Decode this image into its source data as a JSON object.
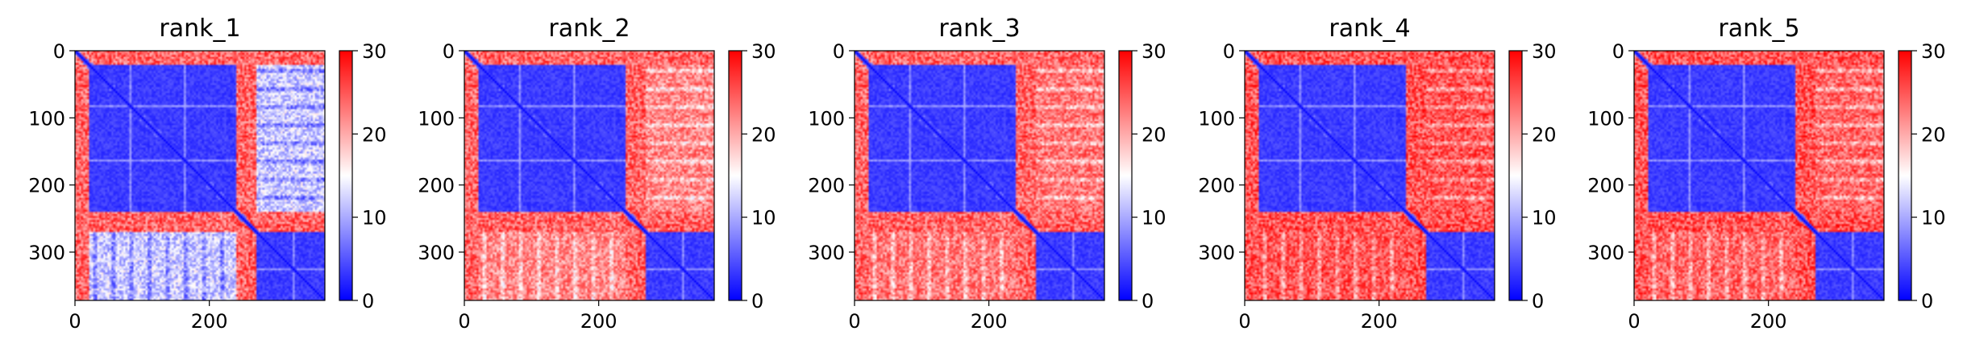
{
  "chart_data": [
    {
      "type": "heatmap",
      "title": "rank_1",
      "n": 372,
      "blocks": [
        [
          20,
          240
        ],
        [
          270,
          372
        ]
      ],
      "cross_level": 24,
      "offdiag_level": 12,
      "xticks": [
        0,
        200
      ],
      "yticks": [
        0,
        100,
        200,
        300
      ],
      "colorbar": {
        "range": [
          0,
          30
        ],
        "ticks": [
          0,
          10,
          20,
          30
        ],
        "colors": [
          "#0000ff",
          "#ffffff",
          "#ff0000"
        ]
      }
    },
    {
      "type": "heatmap",
      "title": "rank_2",
      "n": 372,
      "blocks": [
        [
          20,
          240
        ],
        [
          270,
          372
        ]
      ],
      "cross_level": 24,
      "offdiag_level": 22,
      "xticks": [
        0,
        200
      ],
      "yticks": [
        0,
        100,
        200,
        300
      ],
      "colorbar": {
        "range": [
          0,
          30
        ],
        "ticks": [
          0,
          10,
          20,
          30
        ],
        "colors": [
          "#0000ff",
          "#ffffff",
          "#ff0000"
        ]
      }
    },
    {
      "type": "heatmap",
      "title": "rank_3",
      "n": 372,
      "blocks": [
        [
          20,
          240
        ],
        [
          270,
          372
        ]
      ],
      "cross_level": 24,
      "offdiag_level": 23,
      "xticks": [
        0,
        200
      ],
      "yticks": [
        0,
        100,
        200,
        300
      ],
      "colorbar": {
        "range": [
          0,
          30
        ],
        "ticks": [
          0,
          10,
          20,
          30
        ],
        "colors": [
          "#0000ff",
          "#ffffff",
          "#ff0000"
        ]
      }
    },
    {
      "type": "heatmap",
      "title": "rank_4",
      "n": 372,
      "blocks": [
        [
          20,
          240
        ],
        [
          270,
          372
        ]
      ],
      "cross_level": 25,
      "offdiag_level": 25,
      "xticks": [
        0,
        200
      ],
      "yticks": [
        0,
        100,
        200,
        300
      ],
      "colorbar": {
        "range": [
          0,
          30
        ],
        "ticks": [
          0,
          10,
          20,
          30
        ],
        "colors": [
          "#0000ff",
          "#ffffff",
          "#ff0000"
        ]
      }
    },
    {
      "type": "heatmap",
      "title": "rank_5",
      "n": 372,
      "blocks": [
        [
          20,
          240
        ],
        [
          270,
          372
        ]
      ],
      "cross_level": 25,
      "offdiag_level": 24,
      "xticks": [
        0,
        200
      ],
      "yticks": [
        0,
        100,
        200,
        300
      ],
      "colorbar": {
        "range": [
          0,
          30
        ],
        "ticks": [
          0,
          10,
          20,
          30
        ],
        "colors": [
          "#0000ff",
          "#ffffff",
          "#ff0000"
        ]
      }
    }
  ]
}
